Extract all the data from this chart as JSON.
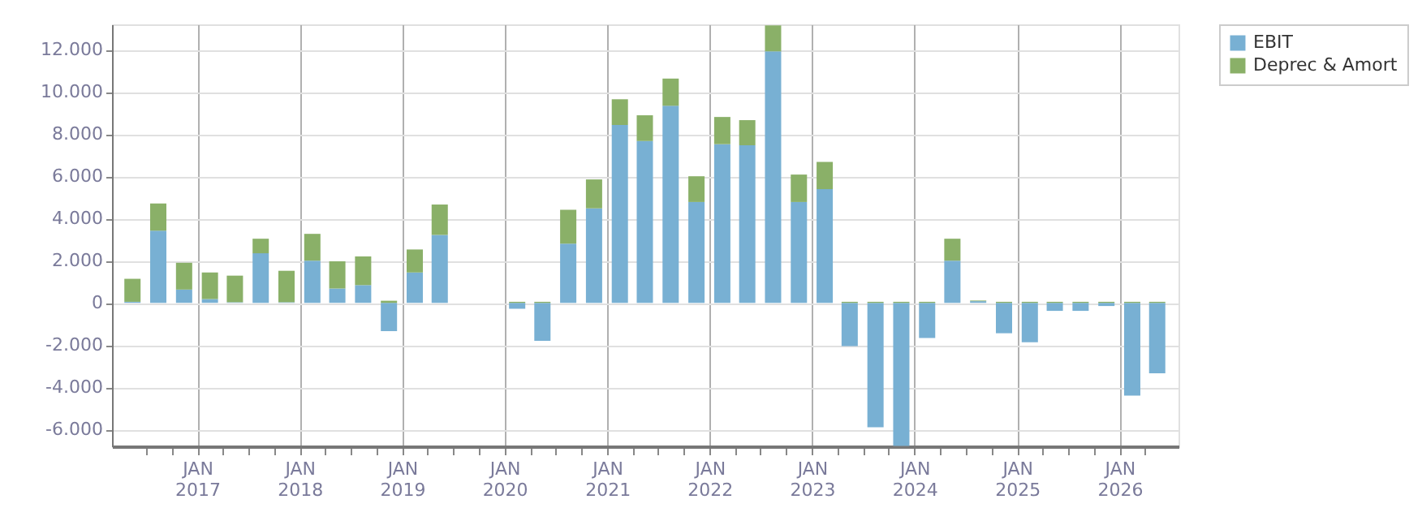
{
  "chart_data": {
    "type": "bar",
    "stacked": true,
    "grid": true,
    "legend": "top right",
    "x": [
      "2016-05-15",
      "2016-08-15",
      "2016-11-15",
      "2017-02-15",
      "2017-05-15",
      "2017-08-15",
      "2017-11-15",
      "2018-02-15",
      "2018-05-15",
      "2018-08-15",
      "2018-11-15",
      "2019-02-15",
      "2019-05-15",
      "2019-08-15",
      "2019-11-15",
      "2020-02-15",
      "2020-05-15",
      "2020-08-15",
      "2020-11-15",
      "2021-02-15",
      "2021-05-15",
      "2021-08-15",
      "2021-11-15",
      "2022-02-15",
      "2022-05-15",
      "2022-08-15",
      "2022-11-15",
      "2023-02-15",
      "2023-05-15",
      "2023-08-15",
      "2023-11-15",
      "2024-02-15",
      "2024-05-15",
      "2024-08-15",
      "2024-11-15",
      "2025-02-15",
      "2025-05-15",
      "2025-08-15",
      "2025-11-15",
      "2026-02-15",
      "2026-05-15"
    ],
    "series": [
      {
        "name": "EBIT",
        "color": "#78b0d3",
        "values": [
          50,
          3420,
          630,
          180,
          30,
          2350,
          30,
          2000,
          680,
          840,
          -1340,
          1440,
          3220,
          null,
          null,
          -280,
          -1800,
          2810,
          4480,
          8430,
          7670,
          9340,
          4780,
          7520,
          7470,
          11920,
          4780,
          5390,
          -2050,
          -5900,
          -6780,
          -1670,
          2000,
          80,
          -1440,
          -1870,
          -380,
          -380,
          -150,
          -4400,
          -3340
        ]
      },
      {
        "name": "Deprec & Amort",
        "color": "#8ab068",
        "values": [
          1090,
          1290,
          1270,
          1260,
          1260,
          690,
          1490,
          1270,
          1290,
          1360,
          100,
          1090,
          1440,
          null,
          null,
          50,
          50,
          1600,
          1370,
          1220,
          1220,
          1290,
          1220,
          1290,
          1190,
          1230,
          1300,
          1290,
          50,
          50,
          50,
          50,
          1040,
          30,
          50,
          50,
          50,
          50,
          50,
          50,
          50
        ]
      }
    ],
    "xlim": [
      "2016-04-01",
      "2026-07-01"
    ],
    "xticks": [
      {
        "value": "2016-07-01",
        "label": null
      },
      {
        "value": "2016-10-01",
        "label": null
      },
      {
        "value": "2017-01-01",
        "label": "JAN 2017"
      },
      {
        "value": "2017-04-01",
        "label": null
      },
      {
        "value": "2017-07-01",
        "label": null
      },
      {
        "value": "2017-10-01",
        "label": null
      },
      {
        "value": "2018-01-01",
        "label": "JAN 2018"
      },
      {
        "value": "2018-04-01",
        "label": null
      },
      {
        "value": "2018-07-01",
        "label": null
      },
      {
        "value": "2018-10-01",
        "label": null
      },
      {
        "value": "2019-01-01",
        "label": "JAN 2019"
      },
      {
        "value": "2019-04-01",
        "label": null
      },
      {
        "value": "2019-07-01",
        "label": null
      },
      {
        "value": "2019-10-01",
        "label": null
      },
      {
        "value": "2020-01-01",
        "label": "JAN 2020"
      },
      {
        "value": "2020-04-01",
        "label": null
      },
      {
        "value": "2020-07-01",
        "label": null
      },
      {
        "value": "2020-10-01",
        "label": null
      },
      {
        "value": "2021-01-01",
        "label": "JAN 2021"
      },
      {
        "value": "2021-04-01",
        "label": null
      },
      {
        "value": "2021-07-01",
        "label": null
      },
      {
        "value": "2021-10-01",
        "label": null
      },
      {
        "value": "2022-01-01",
        "label": "JAN 2022"
      },
      {
        "value": "2022-04-01",
        "label": null
      },
      {
        "value": "2022-07-01",
        "label": null
      },
      {
        "value": "2022-10-01",
        "label": null
      },
      {
        "value": "2023-01-01",
        "label": "JAN 2023"
      },
      {
        "value": "2023-04-01",
        "label": null
      },
      {
        "value": "2023-07-01",
        "label": null
      },
      {
        "value": "2023-10-01",
        "label": null
      },
      {
        "value": "2024-01-01",
        "label": "JAN 2024"
      },
      {
        "value": "2024-04-01",
        "label": null
      },
      {
        "value": "2024-07-01",
        "label": null
      },
      {
        "value": "2024-10-01",
        "label": null
      },
      {
        "value": "2025-01-01",
        "label": "JAN 2025"
      },
      {
        "value": "2025-04-01",
        "label": null
      },
      {
        "value": "2025-07-01",
        "label": null
      },
      {
        "value": "2025-10-01",
        "label": null
      },
      {
        "value": "2026-01-01",
        "label": "JAN 2026"
      },
      {
        "value": "2026-04-01",
        "label": null
      }
    ],
    "ylim": [
      -6800,
      13200
    ],
    "yticks": [
      {
        "value": -6000,
        "label": "-6.000"
      },
      {
        "value": -4000,
        "label": "-4.000"
      },
      {
        "value": -2000,
        "label": "-2.000"
      },
      0,
      {
        "value": 2000,
        "label": "2.000"
      },
      {
        "value": 4000,
        "label": "4.000"
      },
      {
        "value": 6000,
        "label": "6.000"
      },
      {
        "value": 8000,
        "label": "8.000"
      },
      {
        "value": 10000,
        "label": "10.000"
      },
      {
        "value": 12000,
        "label": "12.000"
      }
    ]
  }
}
